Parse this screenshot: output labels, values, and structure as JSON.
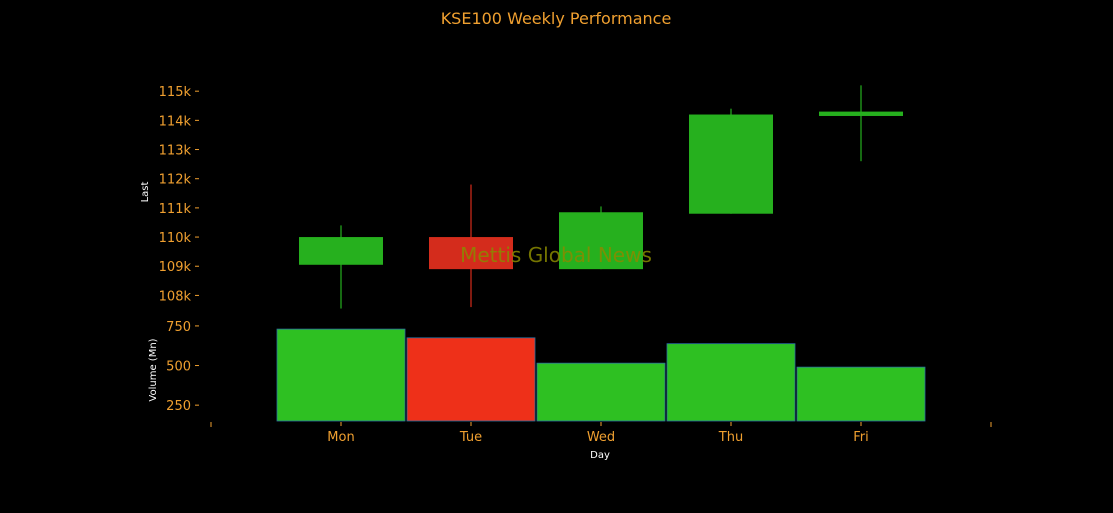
{
  "chart_data": {
    "type": "candlestick",
    "title": "KSE100 Weekly Performance",
    "watermark": "Mettis Global News",
    "categories": [
      "Mon",
      "Tue",
      "Wed",
      "Thu",
      "Fri"
    ],
    "xlabel": "Day",
    "price": {
      "ylabel": "Last",
      "ylim": [
        107500,
        116000
      ],
      "ticks": [
        108000,
        109000,
        110000,
        111000,
        112000,
        113000,
        114000,
        115000
      ],
      "tick_labels": [
        "108k",
        "109k",
        "110k",
        "111k",
        "112k",
        "113k",
        "114k",
        "115k"
      ],
      "candles": [
        {
          "day": "Mon",
          "open": 109050,
          "close": 110000,
          "high": 110400,
          "low": 107550,
          "direction": "up"
        },
        {
          "day": "Tue",
          "open": 110000,
          "close": 108900,
          "high": 111800,
          "low": 107600,
          "direction": "down"
        },
        {
          "day": "Wed",
          "open": 108900,
          "close": 110850,
          "high": 111050,
          "low": 108900,
          "direction": "up"
        },
        {
          "day": "Thu",
          "open": 110800,
          "close": 114200,
          "high": 114400,
          "low": 110800,
          "direction": "up"
        },
        {
          "day": "Fri",
          "open": 114150,
          "close": 114300,
          "high": 115200,
          "low": 112600,
          "direction": "up"
        }
      ]
    },
    "volume": {
      "ylabel": "Volume (Mn)",
      "ylim": [
        150,
        800
      ],
      "ticks": [
        250,
        500,
        750
      ],
      "tick_labels": [
        "250",
        "500",
        "750"
      ],
      "values": [
        730,
        675,
        515,
        638,
        490
      ],
      "directions": [
        "up",
        "down",
        "up",
        "up",
        "up"
      ]
    },
    "colors": {
      "up": "#26b01e",
      "down": "#d42c1c",
      "volume_up": "#2ec022",
      "volume_down": "#ee3019",
      "accent": "#f0a030",
      "background": "#000000"
    }
  }
}
